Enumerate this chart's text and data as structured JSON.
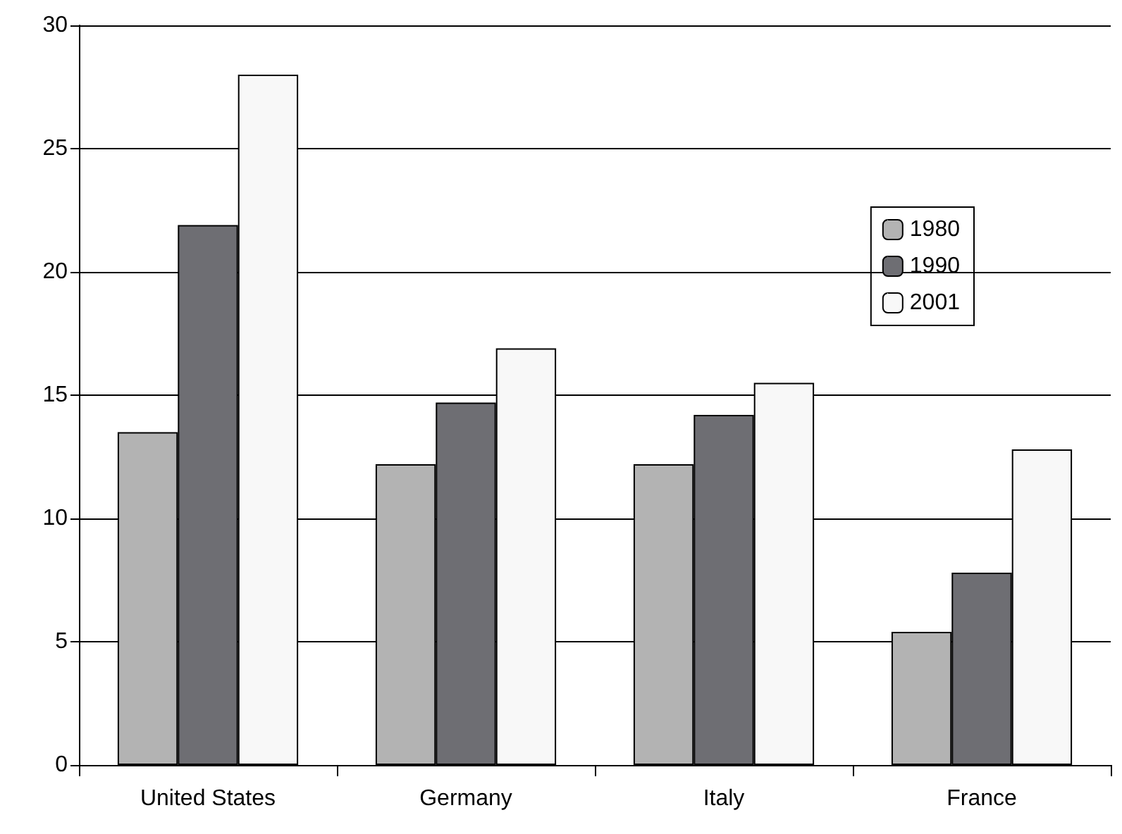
{
  "chart_data": {
    "type": "bar",
    "categories": [
      "United States",
      "Germany",
      "Italy",
      "France"
    ],
    "series": [
      {
        "name": "1980",
        "color": "#b3b3b3",
        "values": [
          13.5,
          12.2,
          12.2,
          5.4
        ]
      },
      {
        "name": "1990",
        "color": "#6e6e73",
        "values": [
          21.9,
          14.7,
          14.2,
          7.8
        ]
      },
      {
        "name": "2001",
        "color": "#f8f8f8",
        "values": [
          28,
          16.9,
          15.5,
          12.8
        ]
      }
    ],
    "ylim": [
      0,
      30
    ],
    "yticks": [
      0,
      5,
      10,
      15,
      20,
      25,
      30
    ],
    "grid": "y",
    "legend": "top right"
  }
}
